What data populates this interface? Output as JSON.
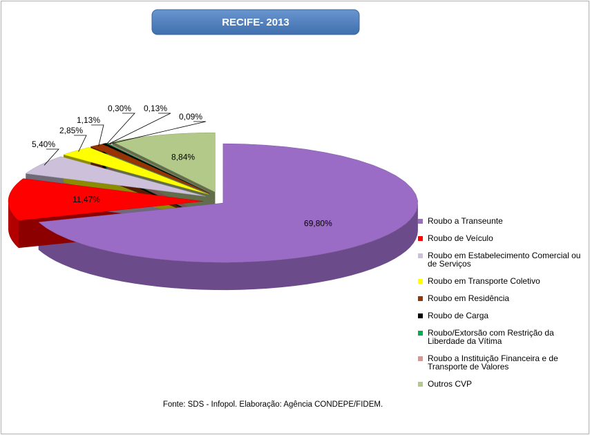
{
  "chart_data": {
    "type": "pie",
    "title": "RECIFE- 2013",
    "categories": [
      "Roubo a Transeunte",
      "Roubo de Veículo",
      "Roubo em Estabelecimento Comercial ou de Serviços",
      "Roubo em Transporte Coletivo",
      "Roubo em Residência",
      "Roubo de Carga",
      "Roubo/Extorsão com Restrição da Liberdade da Vítima",
      "Roubo a Instituição Financeira e de Transporte de Valores",
      "Outros CVP"
    ],
    "values": [
      69.8,
      11.47,
      5.4,
      2.85,
      1.13,
      0.3,
      0.13,
      0.09,
      8.84
    ],
    "value_labels": [
      "69,80%",
      "11,47%",
      "5,40%",
      "2,85%",
      "1,13%",
      "0,30%",
      "0,13%",
      "0,09%",
      "8,84%"
    ],
    "colors": [
      "#9b6cc6",
      "#ff0000",
      "#ccc0da",
      "#ffff00",
      "#993300",
      "#000000",
      "#00b050",
      "#d99694",
      "#b3c98a"
    ],
    "legend": "right",
    "source": "Fonte: SDS - Infopol.  Elaboração: Agência CONDEPE/FIDEM."
  }
}
